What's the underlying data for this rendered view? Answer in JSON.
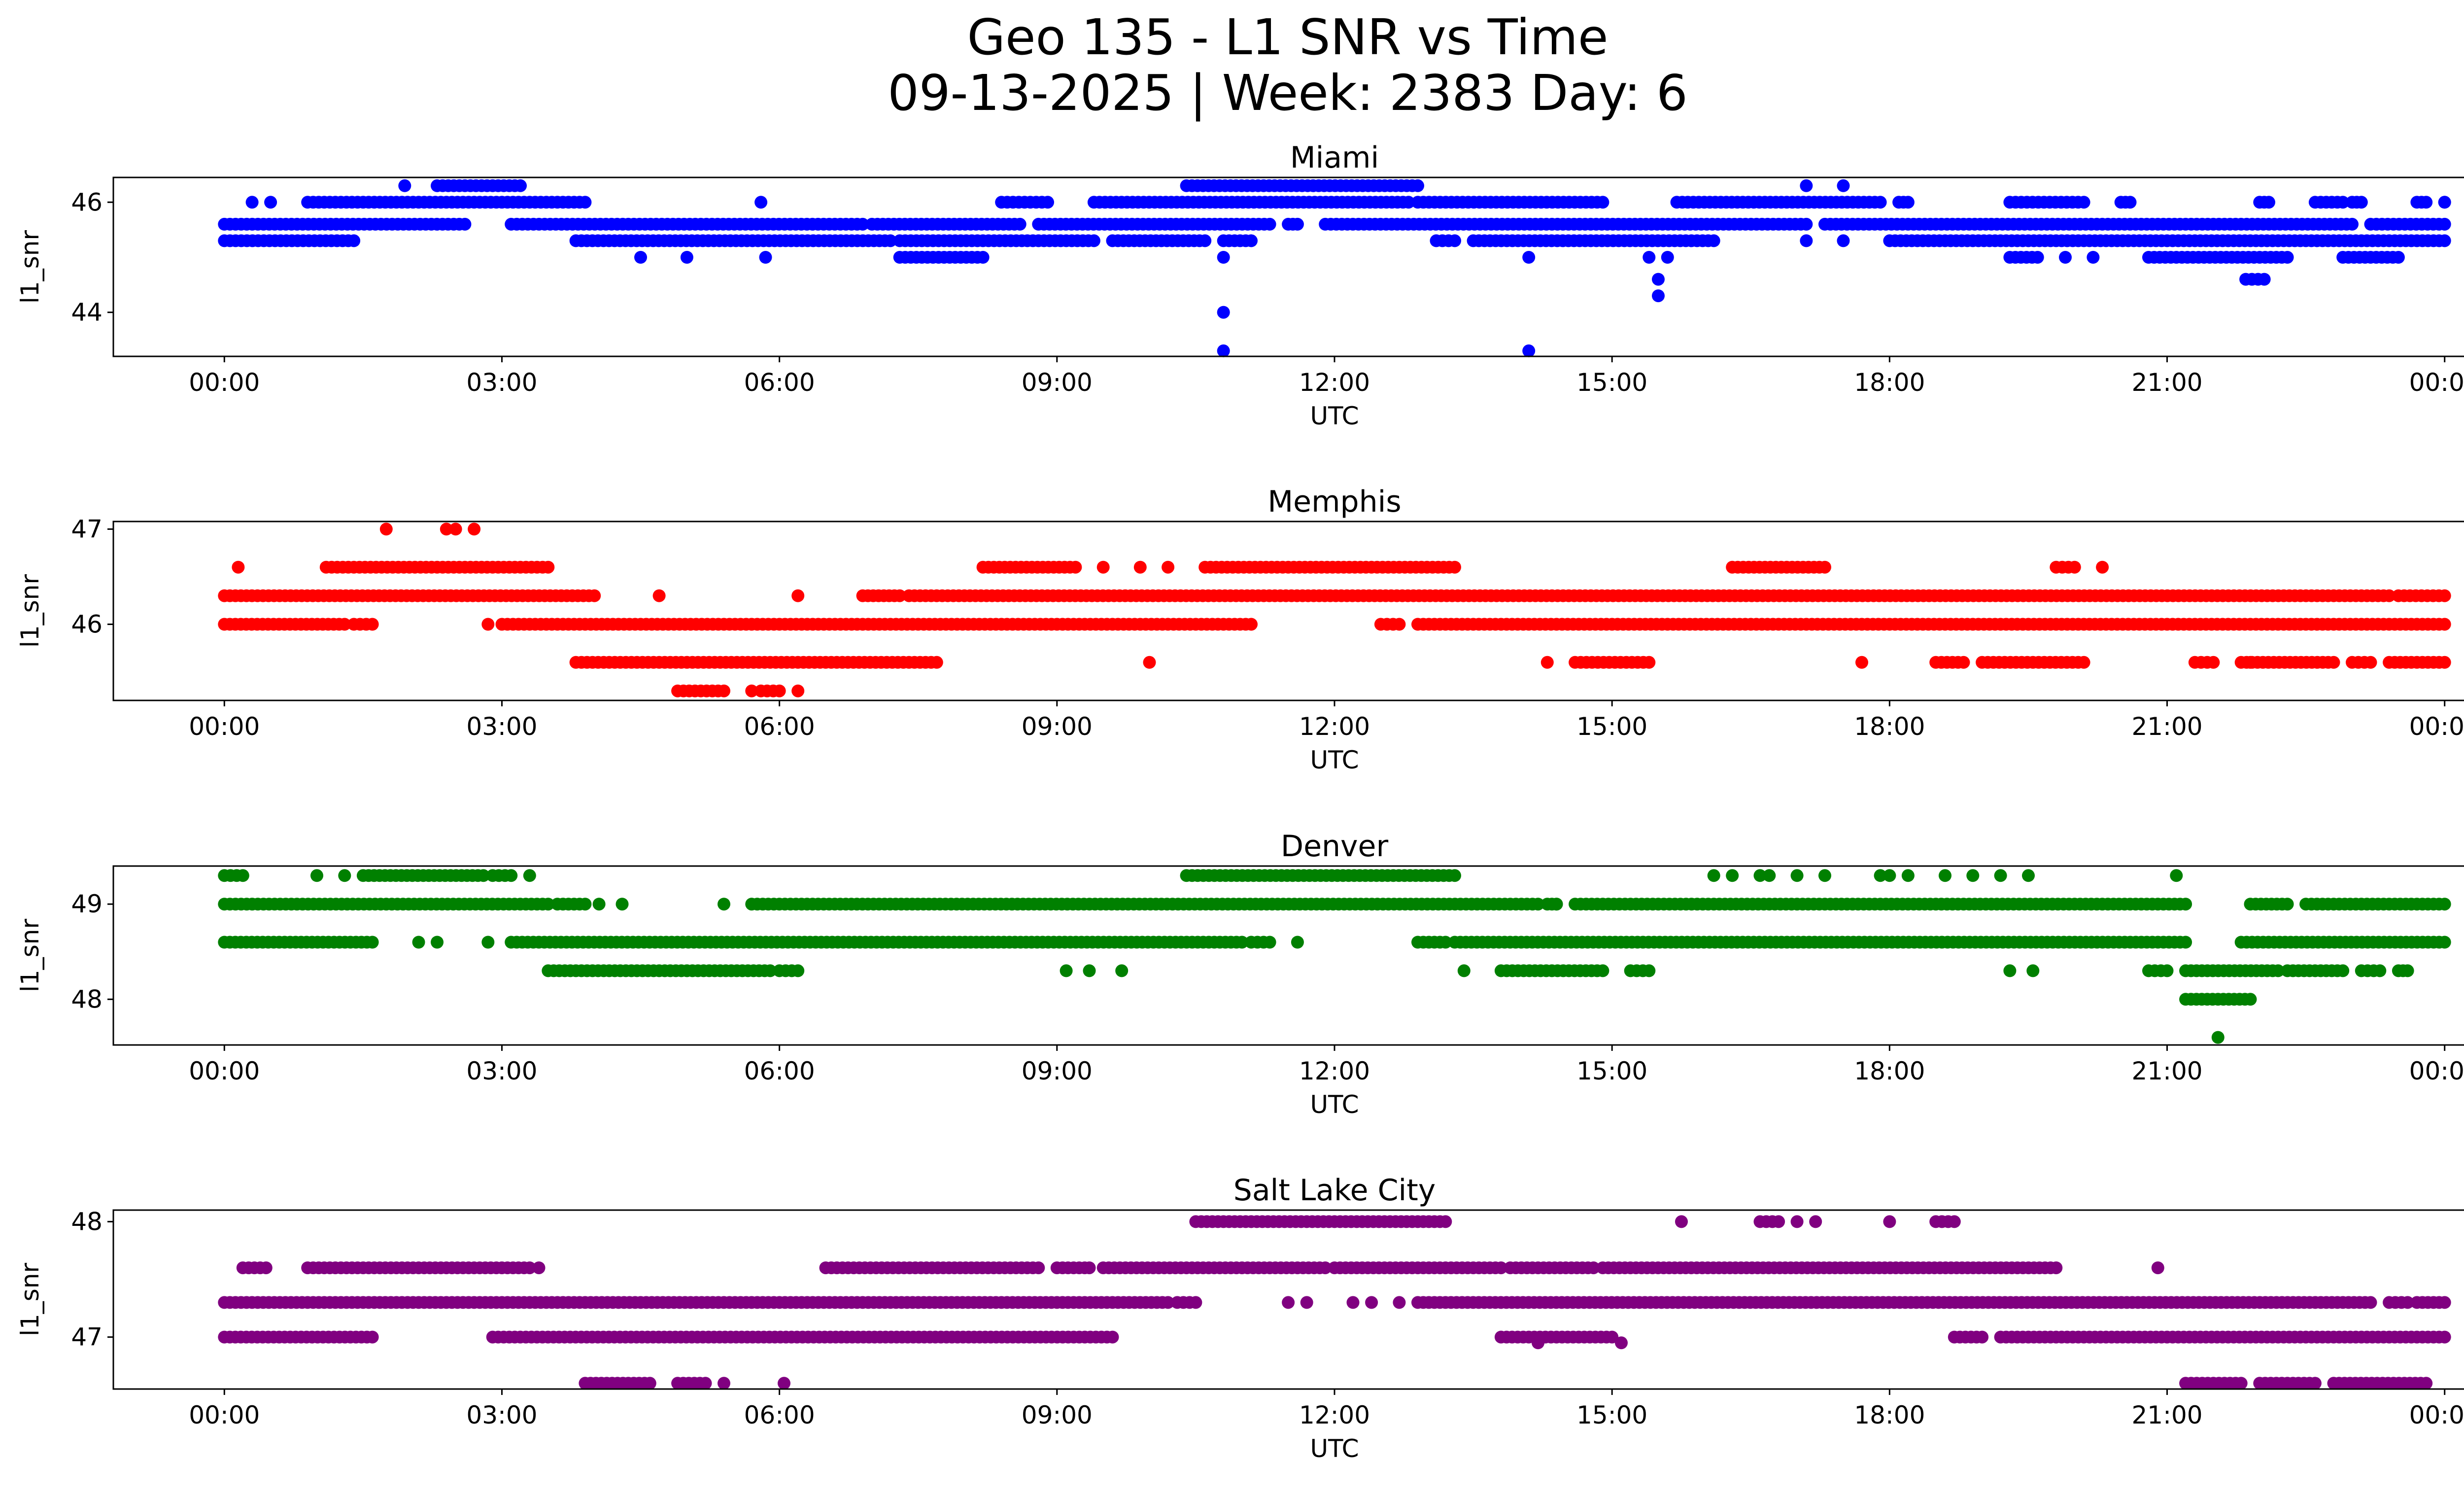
{
  "chart_data": {
    "type": "scatter",
    "title_line1": "Geo 135 - L1 SNR vs Time",
    "title_line2": "09-13-2025 | Week: 2383 Day: 6",
    "xlabel": "UTC",
    "xticks": [
      "00:00",
      "03:00",
      "06:00",
      "09:00",
      "12:00",
      "15:00",
      "18:00",
      "21:00",
      "00:00"
    ],
    "xlim_hours": [
      -1.2,
      25.2
    ],
    "panels": [
      {
        "name": "Miami",
        "ylabel": "l1_snr",
        "color": "#0000ff",
        "ylim": [
          43.2,
          46.45
        ],
        "yticks": [
          "44",
          "46"
        ],
        "ytick_values": [
          44,
          46
        ],
        "bands": [
          {
            "y": 45.3,
            "segs": [
              [
                0,
                1.4
              ],
              [
                3.8,
                7.2
              ],
              [
                7.3,
                9.4
              ],
              [
                9.6,
                10.6
              ],
              [
                10.8,
                11.1
              ],
              [
                13.1,
                13.3
              ],
              [
                13.5,
                16.1
              ],
              [
                18.0,
                24.0
              ]
            ]
          },
          {
            "y": 45.6,
            "segs": [
              [
                0,
                2.6
              ],
              [
                3.1,
                6.9
              ],
              [
                7.0,
                8.6
              ],
              [
                8.8,
                11.3
              ],
              [
                11.5,
                11.6
              ],
              [
                11.9,
                17.1
              ],
              [
                17.3,
                23.0
              ],
              [
                23.2,
                24.0
              ]
            ]
          },
          {
            "y": 46.0,
            "segs": [
              [
                0.9,
                3.9
              ],
              [
                8.4,
                8.9
              ],
              [
                9.4,
                12.8
              ],
              [
                12.9,
                14.9
              ],
              [
                15.7,
                17.9
              ],
              [
                18.1,
                18.2
              ],
              [
                19.3,
                20.1
              ],
              [
                20.5,
                20.6
              ],
              [
                22.0,
                22.1
              ],
              [
                22.6,
                22.9
              ],
              [
                23.0,
                23.1
              ],
              [
                23.7,
                23.8
              ],
              [
                24.0,
                24.0
              ]
            ]
          },
          {
            "y": 46.3,
            "segs": [
              [
                2.3,
                3.2
              ],
              [
                10.4,
                12.9
              ]
            ]
          },
          {
            "y": 45.0,
            "segs": [
              [
                7.3,
                8.2
              ],
              [
                19.3,
                19.6
              ],
              [
                20.8,
                22.3
              ],
              [
                22.9,
                23.5
              ]
            ]
          },
          {
            "y": 44.6,
            "segs": [
              [
                21.85,
                22.05
              ]
            ]
          }
        ],
        "points": [
          [
            0.3,
            46.0
          ],
          [
            0.5,
            46.0
          ],
          [
            1.95,
            46.3
          ],
          [
            4.5,
            45.0
          ],
          [
            5.0,
            45.0
          ],
          [
            5.85,
            45.0
          ],
          [
            5.8,
            46.0
          ],
          [
            10.8,
            44.0
          ],
          [
            10.8,
            43.3
          ],
          [
            10.8,
            45.0
          ],
          [
            14.1,
            43.3
          ],
          [
            14.1,
            45.0
          ],
          [
            15.4,
            45.0
          ],
          [
            15.6,
            45.0
          ],
          [
            15.5,
            44.6
          ],
          [
            15.5,
            44.3
          ],
          [
            17.1,
            46.3
          ],
          [
            17.5,
            46.3
          ],
          [
            17.5,
            45.3
          ],
          [
            17.1,
            45.3
          ],
          [
            19.9,
            45.0
          ],
          [
            20.2,
            45.0
          ]
        ]
      },
      {
        "name": "Memphis",
        "ylabel": "l1_snr",
        "color": "#ff0000",
        "ylim": [
          45.2,
          47.08
        ],
        "yticks": [
          "46",
          "47"
        ],
        "ytick_values": [
          46,
          47
        ],
        "bands": [
          {
            "y": 46.3,
            "segs": [
              [
                0,
                4.0
              ],
              [
                6.9,
                7.3
              ],
              [
                7.4,
                23.4
              ],
              [
                23.5,
                24.0
              ]
            ]
          },
          {
            "y": 46.0,
            "segs": [
              [
                0,
                1.3
              ],
              [
                1.4,
                1.6
              ],
              [
                3.0,
                11.1
              ],
              [
                12.5,
                12.7
              ],
              [
                12.9,
                24.0
              ]
            ]
          },
          {
            "y": 46.6,
            "segs": [
              [
                1.1,
                3.5
              ],
              [
                8.2,
                9.2
              ],
              [
                10.6,
                13.3
              ],
              [
                16.3,
                17.3
              ],
              [
                19.8,
                20.0
              ]
            ]
          },
          {
            "y": 45.6,
            "segs": [
              [
                3.8,
                7.7
              ],
              [
                14.6,
                15.4
              ],
              [
                18.5,
                18.8
              ],
              [
                19.0,
                20.1
              ],
              [
                21.3,
                21.5
              ],
              [
                21.8,
                22.8
              ],
              [
                23.0,
                23.2
              ],
              [
                23.4,
                24.0
              ]
            ]
          },
          {
            "y": 45.3,
            "segs": [
              [
                4.9,
                5.4
              ],
              [
                5.8,
                6.0
              ]
            ]
          }
        ],
        "points": [
          [
            0.15,
            46.6
          ],
          [
            1.75,
            47.0
          ],
          [
            2.4,
            47.0
          ],
          [
            2.5,
            47.0
          ],
          [
            2.7,
            47.0
          ],
          [
            2.85,
            46.0
          ],
          [
            4.7,
            46.3
          ],
          [
            5.7,
            45.3
          ],
          [
            6.2,
            45.3
          ],
          [
            6.2,
            46.3
          ],
          [
            9.5,
            46.6
          ],
          [
            9.9,
            46.6
          ],
          [
            10.2,
            46.6
          ],
          [
            10.0,
            45.6
          ],
          [
            14.3,
            45.6
          ],
          [
            17.7,
            45.6
          ],
          [
            20.3,
            46.6
          ],
          [
            21.9,
            45.6
          ]
        ]
      },
      {
        "name": "Denver",
        "ylabel": "l1_snr",
        "color": "#008000",
        "ylim": [
          47.52,
          49.4
        ],
        "yticks": [
          "48",
          "49"
        ],
        "ytick_values": [
          48,
          49
        ],
        "bands": [
          {
            "y": 49.0,
            "segs": [
              [
                0,
                3.5
              ],
              [
                3.6,
                3.9
              ],
              [
                5.7,
                14.2
              ],
              [
                14.3,
                14.4
              ],
              [
                14.6,
                21.2
              ],
              [
                21.9,
                22.3
              ],
              [
                22.5,
                24.0
              ]
            ]
          },
          {
            "y": 48.6,
            "segs": [
              [
                0,
                1.6
              ],
              [
                3.1,
                11.0
              ],
              [
                11.1,
                11.3
              ],
              [
                12.9,
                13.2
              ],
              [
                13.3,
                21.2
              ],
              [
                21.8,
                24.0
              ]
            ]
          },
          {
            "y": 49.3,
            "segs": [
              [
                0,
                0.2
              ],
              [
                1.5,
                2.8
              ],
              [
                2.9,
                3.1
              ],
              [
                10.4,
                13.3
              ]
            ]
          },
          {
            "y": 48.3,
            "segs": [
              [
                3.5,
                5.9
              ],
              [
                6.0,
                6.2
              ],
              [
                13.8,
                14.9
              ],
              [
                15.2,
                15.4
              ],
              [
                20.8,
                21.0
              ],
              [
                21.2,
                22.2
              ],
              [
                22.3,
                22.9
              ],
              [
                23.1,
                23.3
              ],
              [
                23.5,
                23.6
              ]
            ]
          },
          {
            "y": 48.0,
            "segs": [
              [
                21.2,
                21.9
              ]
            ]
          }
        ],
        "points": [
          [
            1.0,
            49.3
          ],
          [
            1.3,
            49.3
          ],
          [
            2.1,
            48.6
          ],
          [
            2.3,
            48.6
          ],
          [
            2.85,
            48.6
          ],
          [
            3.3,
            49.3
          ],
          [
            4.05,
            49.0
          ],
          [
            4.3,
            49.0
          ],
          [
            5.4,
            49.0
          ],
          [
            9.1,
            48.3
          ],
          [
            9.35,
            48.3
          ],
          [
            9.7,
            48.3
          ],
          [
            11.6,
            48.6
          ],
          [
            13.4,
            48.3
          ],
          [
            14.4,
            49.0
          ],
          [
            16.1,
            49.3
          ],
          [
            16.3,
            49.3
          ],
          [
            16.6,
            49.3
          ],
          [
            16.7,
            49.3
          ],
          [
            17.0,
            49.3
          ],
          [
            17.3,
            49.3
          ],
          [
            17.9,
            49.3
          ],
          [
            18.0,
            49.3
          ],
          [
            18.2,
            49.3
          ],
          [
            18.6,
            49.3
          ],
          [
            18.9,
            49.3
          ],
          [
            19.2,
            49.3
          ],
          [
            19.5,
            49.3
          ],
          [
            21.1,
            49.3
          ],
          [
            21.55,
            47.6
          ],
          [
            19.3,
            48.3
          ],
          [
            19.55,
            48.3
          ]
        ]
      },
      {
        "name": "Salt Lake City",
        "ylabel": "l1_snr",
        "color": "#800080",
        "ylim": [
          46.55,
          48.1
        ],
        "yticks": [
          "47",
          "48"
        ],
        "ytick_values": [
          47,
          48
        ],
        "bands": [
          {
            "y": 47.3,
            "segs": [
              [
                0,
                10.2
              ],
              [
                10.3,
                10.5
              ],
              [
                12.9,
                23.2
              ],
              [
                23.4,
                23.6
              ],
              [
                23.7,
                24.0
              ]
            ]
          },
          {
            "y": 47.0,
            "segs": [
              [
                0,
                1.6
              ],
              [
                2.9,
                9.6
              ],
              [
                13.8,
                15.0
              ],
              [
                18.7,
                19.0
              ],
              [
                19.2,
                24.0
              ]
            ]
          },
          {
            "y": 47.6,
            "segs": [
              [
                0.2,
                0.45
              ],
              [
                0.9,
                3.3
              ],
              [
                6.5,
                8.8
              ],
              [
                9.0,
                9.3
              ],
              [
                9.5,
                11.9
              ],
              [
                12.0,
                13.8
              ],
              [
                13.9,
                14.8
              ],
              [
                14.9,
                19.8
              ]
            ]
          },
          {
            "y": 48.0,
            "segs": [
              [
                10.5,
                13.2
              ],
              [
                16.6,
                16.8
              ],
              [
                18.5,
                18.7
              ]
            ]
          },
          {
            "y": 46.6,
            "segs": [
              [
                3.9,
                4.6
              ],
              [
                4.9,
                5.2
              ],
              [
                21.2,
                21.8
              ],
              [
                22.0,
                22.6
              ],
              [
                22.8,
                23.8
              ]
            ]
          }
        ],
        "points": [
          [
            3.4,
            47.6
          ],
          [
            11.5,
            47.3
          ],
          [
            11.7,
            47.3
          ],
          [
            12.2,
            47.3
          ],
          [
            12.4,
            47.3
          ],
          [
            12.7,
            47.3
          ],
          [
            14.2,
            46.95
          ],
          [
            15.1,
            46.95
          ],
          [
            15.75,
            48.0
          ],
          [
            17.0,
            48.0
          ],
          [
            17.2,
            48.0
          ],
          [
            18.0,
            48.0
          ],
          [
            20.9,
            47.6
          ],
          [
            5.4,
            46.6
          ],
          [
            6.05,
            46.6
          ],
          [
            9.35,
            47.6
          ]
        ]
      }
    ]
  }
}
